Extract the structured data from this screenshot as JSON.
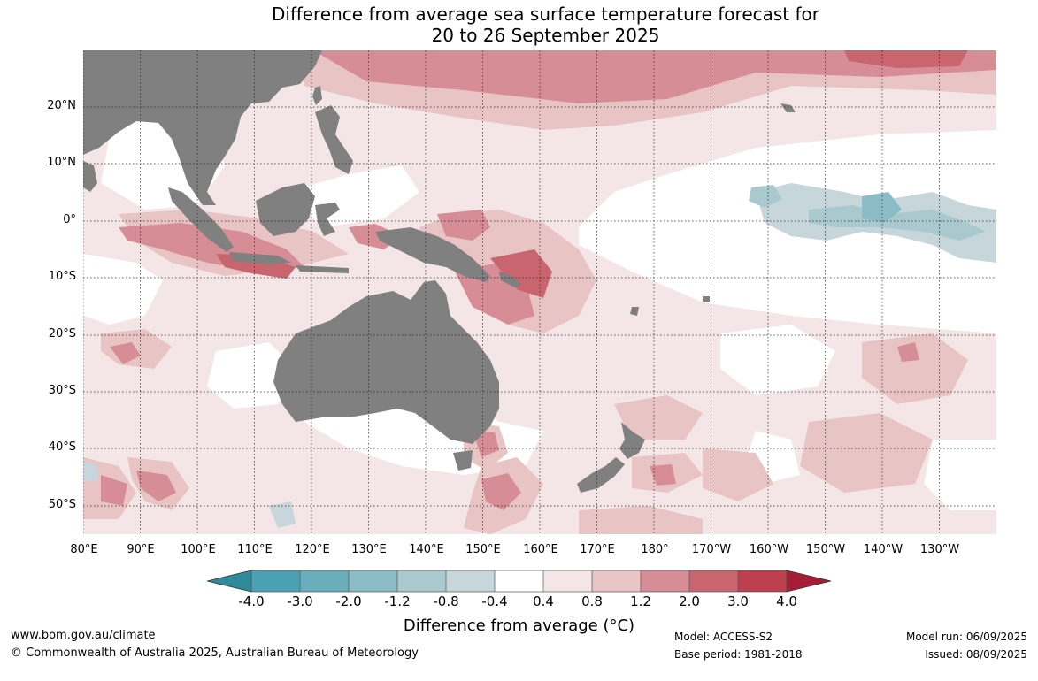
{
  "title_line1": "Difference from average sea surface temperature forecast for",
  "title_line2": "20 to 26 September 2025",
  "lat_labels": [
    "20°N",
    "10°N",
    "0°",
    "10°S",
    "20°S",
    "30°S",
    "40°S",
    "50°S"
  ],
  "lon_labels": [
    "80°E",
    "90°E",
    "100°E",
    "110°E",
    "120°E",
    "130°E",
    "140°E",
    "150°E",
    "160°E",
    "170°E",
    "180°",
    "170°W",
    "160°W",
    "150°W",
    "140°W",
    "130°W"
  ],
  "colorbar": {
    "ticks": [
      "-4.0",
      "-3.0",
      "-2.0",
      "-1.2",
      "-0.8",
      "-0.4",
      "0.4",
      "0.8",
      "1.2",
      "2.0",
      "3.0",
      "4.0"
    ],
    "colors": [
      "#4aa1b3",
      "#6aaebc",
      "#8cbcc6",
      "#aac9cf",
      "#c7d6da",
      "#ffffff",
      "#f4e6e6",
      "#e8c4c4",
      "#d78d95",
      "#c8656f",
      "#bc404e"
    ],
    "under_color": "#2f8a99",
    "over_color": "#a51c35",
    "label": "Difference from average (°C)"
  },
  "land_color": "#808080",
  "footer": {
    "website": "www.bom.gov.au/climate",
    "copyright": "© Commonwealth of Australia 2025, Australian Bureau of Meteorology",
    "model": "Model: ACCESS-S2",
    "base_period": "Base period: 1981-2018",
    "model_run": "Model run: 06/09/2025",
    "issued": "Issued: 08/09/2025"
  }
}
